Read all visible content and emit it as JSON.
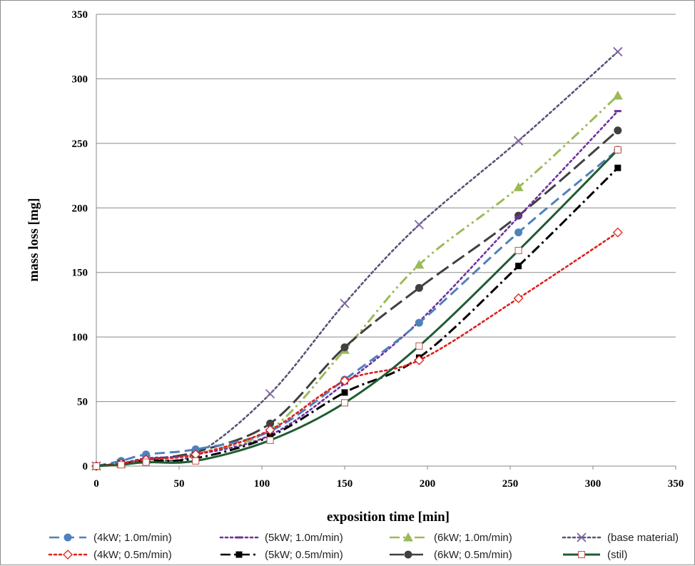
{
  "chart_data": {
    "type": "line",
    "title": "",
    "xlabel": "exposition time [min]",
    "ylabel": "mass loss [mg]",
    "xlim": [
      0,
      350
    ],
    "ylim": [
      0,
      350
    ],
    "xticks": [
      0,
      50,
      100,
      150,
      200,
      250,
      300,
      350
    ],
    "yticks": [
      0,
      50,
      100,
      150,
      200,
      250,
      300,
      350
    ],
    "grid": "horizontal",
    "legend_position": "bottom",
    "series": [
      {
        "name": "(4kW; 1.0m/min)",
        "color": "#4f81bd",
        "dash": "dash",
        "marker": "circle",
        "points": [
          [
            0,
            0
          ],
          [
            15,
            4
          ],
          [
            30,
            9
          ],
          [
            60,
            13
          ],
          [
            105,
            27
          ],
          [
            150,
            67
          ],
          [
            195,
            111
          ],
          [
            255,
            181
          ],
          [
            315,
            245
          ]
        ]
      },
      {
        "name": "(5kW; 1.0m/min)",
        "color": "#7030a0",
        "dash": "dot",
        "marker": "dash",
        "points": [
          [
            0,
            0
          ],
          [
            15,
            2
          ],
          [
            30,
            6
          ],
          [
            60,
            9
          ],
          [
            105,
            24
          ],
          [
            150,
            64
          ],
          [
            195,
            112
          ],
          [
            255,
            193
          ],
          [
            315,
            275
          ]
        ]
      },
      {
        "name": "(6kW; 1.0m/min)",
        "color": "#9bbb59",
        "dash": "dashdotdot",
        "marker": "triangle",
        "points": [
          [
            0,
            0
          ],
          [
            15,
            2
          ],
          [
            30,
            5
          ],
          [
            60,
            10
          ],
          [
            105,
            28
          ],
          [
            150,
            90
          ],
          [
            195,
            156
          ],
          [
            255,
            216
          ],
          [
            315,
            287
          ]
        ]
      },
      {
        "name": "(base material)",
        "color": "#555577",
        "dash": "dot",
        "marker": "x",
        "points": [
          [
            0,
            0
          ],
          [
            15,
            2
          ],
          [
            30,
            5
          ],
          [
            60,
            9
          ],
          [
            105,
            56
          ],
          [
            150,
            126
          ],
          [
            195,
            187
          ],
          [
            255,
            252
          ],
          [
            315,
            321
          ]
        ]
      },
      {
        "name": "(4kW; 0.5m/min)",
        "color": "#e0201b",
        "dash": "dot",
        "marker": "diamond",
        "points": [
          [
            0,
            0
          ],
          [
            15,
            2
          ],
          [
            30,
            5
          ],
          [
            60,
            9
          ],
          [
            105,
            28
          ],
          [
            150,
            66
          ],
          [
            195,
            82
          ],
          [
            255,
            130
          ],
          [
            315,
            181
          ]
        ]
      },
      {
        "name": "(5kW; 0.5m/min)",
        "color": "#000000",
        "dash": "dashdot",
        "marker": "square",
        "points": [
          [
            0,
            0
          ],
          [
            15,
            2
          ],
          [
            30,
            4
          ],
          [
            60,
            6
          ],
          [
            105,
            23
          ],
          [
            150,
            57
          ],
          [
            195,
            84
          ],
          [
            255,
            155
          ],
          [
            315,
            231
          ]
        ]
      },
      {
        "name": "(6kW; 0.5m/min)",
        "color": "#404040",
        "dash": "longdash",
        "marker": "circle",
        "points": [
          [
            0,
            0
          ],
          [
            15,
            2
          ],
          [
            30,
            5
          ],
          [
            60,
            11
          ],
          [
            105,
            33
          ],
          [
            150,
            92
          ],
          [
            195,
            138
          ],
          [
            255,
            194
          ],
          [
            315,
            260
          ]
        ]
      },
      {
        "name": "(stil)",
        "color": "#1f5c32",
        "dash": "solid",
        "marker": "opensquare",
        "points": [
          [
            0,
            0
          ],
          [
            15,
            1
          ],
          [
            30,
            3
          ],
          [
            60,
            4
          ],
          [
            105,
            20
          ],
          [
            150,
            49
          ],
          [
            195,
            93
          ],
          [
            255,
            167
          ],
          [
            315,
            245
          ]
        ]
      }
    ]
  }
}
